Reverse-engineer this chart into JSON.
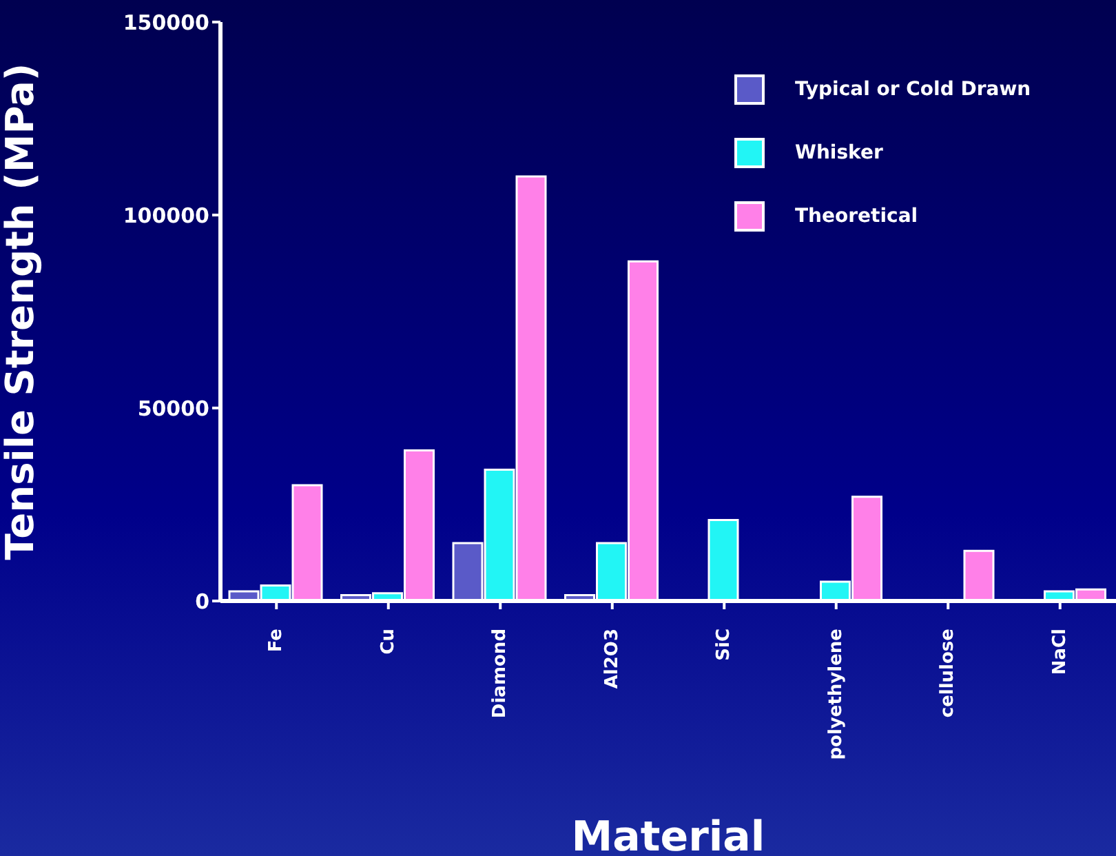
{
  "chart_data": {
    "type": "bar",
    "xlabel": "Material",
    "ylabel": "Tensile Strength (MPa)",
    "categories": [
      "Fe",
      "Cu",
      "Diamond",
      "Al2O3",
      "SiC",
      "polyethylene",
      "cellulose",
      "NaCl"
    ],
    "series": [
      {
        "name": "Typical or Cold Drawn",
        "color": "#5a5ac8",
        "values": [
          2500,
          1500,
          15000,
          1500,
          null,
          null,
          null,
          null
        ]
      },
      {
        "name": "Whisker",
        "color": "#22f5f5",
        "values": [
          4000,
          2000,
          34000,
          15000,
          21000,
          5000,
          null,
          2500
        ]
      },
      {
        "name": "Theoretical",
        "color": "#ff80e8",
        "values": [
          30000,
          39000,
          110000,
          88000,
          null,
          27000,
          13000,
          3000
        ]
      }
    ],
    "ylim": [
      0,
      150000
    ],
    "yticks": [
      0,
      50000,
      100000,
      150000
    ],
    "legend": "top right"
  }
}
